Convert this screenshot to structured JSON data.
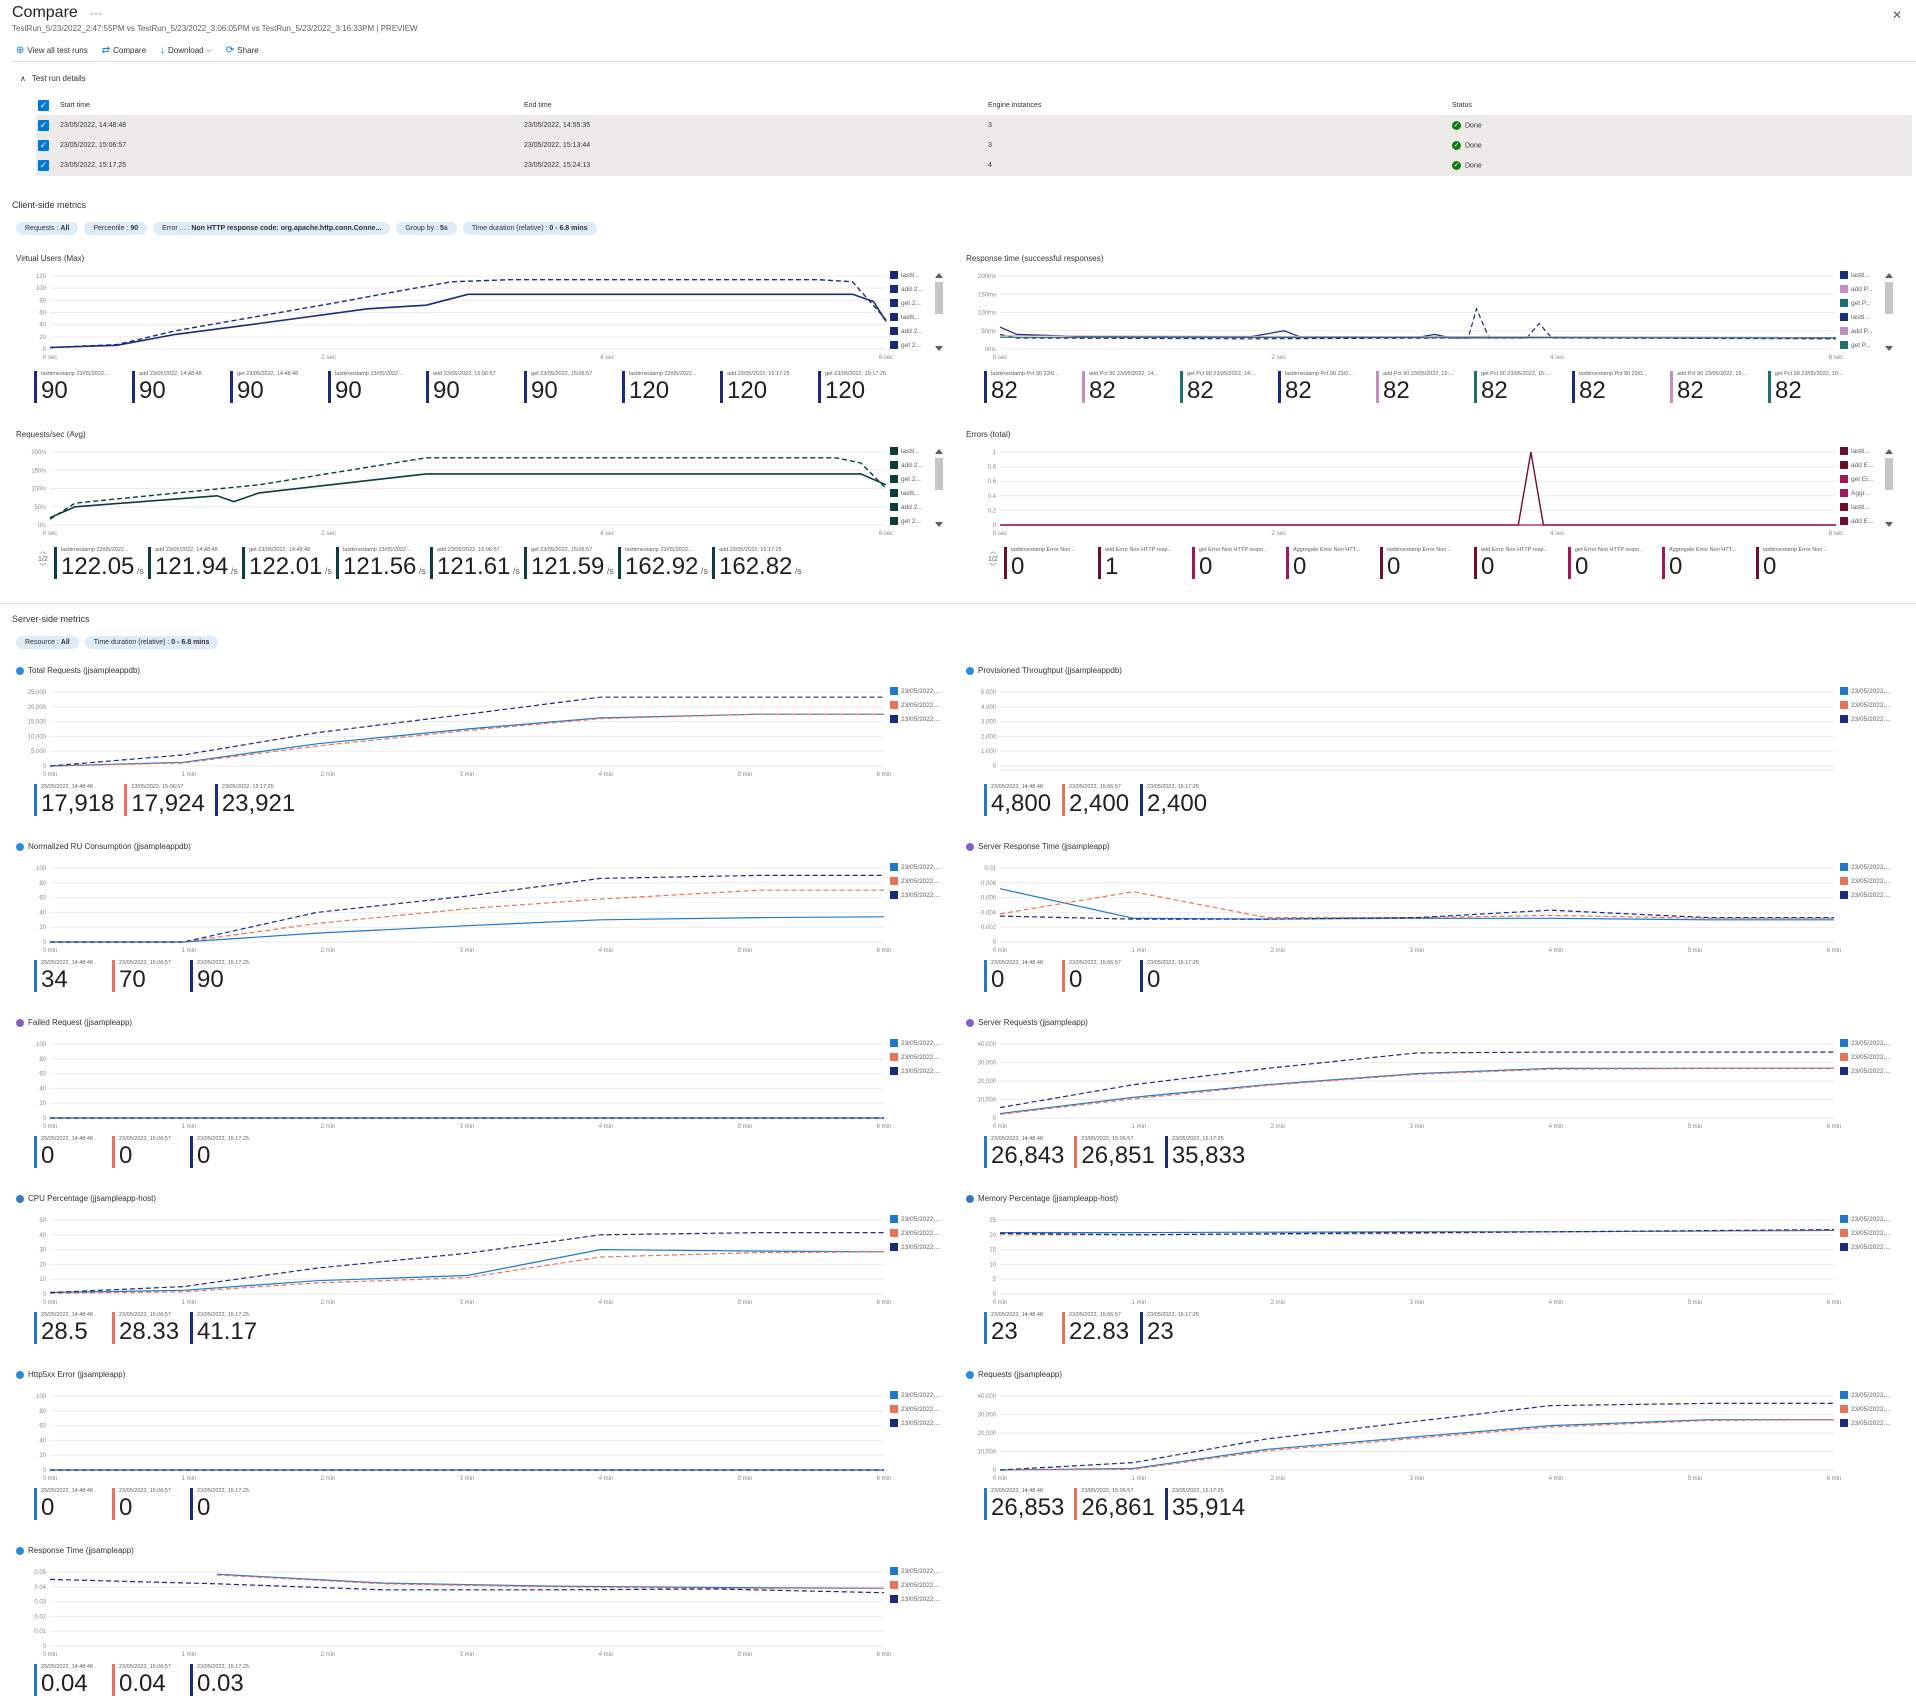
{
  "header": {
    "title": "Compare",
    "subtitle": "TestRun_5/23/2022_2:47:55PM vs TestRun_5/23/2022_3:06:05PM vs TestRun_5/23/2022_3:16:33PM | PREVIEW"
  },
  "toolbar": {
    "view_all": "View all test runs",
    "compare": "Compare",
    "download": "Download",
    "share": "Share"
  },
  "test_runs": {
    "title": "Test run details",
    "columns": [
      "Start time",
      "End time",
      "Engine instances",
      "Status"
    ],
    "rows": [
      {
        "start": "23/05/2022, 14:48:48",
        "end": "23/05/2022, 14:55:35",
        "engines": "3",
        "status": "Done"
      },
      {
        "start": "23/05/2022, 15:06:57",
        "end": "23/05/2022, 15:13:44",
        "engines": "3",
        "status": "Done"
      },
      {
        "start": "23/05/2022, 15:17:25",
        "end": "23/05/2022, 15:24:13",
        "engines": "4",
        "status": "Done"
      }
    ]
  },
  "client": {
    "title": "Client-side metrics",
    "filters": [
      {
        "key": "Requests : ",
        "value": "All"
      },
      {
        "key": "Percentile : ",
        "value": "90"
      },
      {
        "key": "Error ... : ",
        "value": "Non HTTP response code: org.apache.http.conn.Conne..."
      },
      {
        "key": "Group by : ",
        "value": "5s"
      },
      {
        "key": "Time duration (relative) : ",
        "value": "0 - 6.8 mins"
      }
    ]
  },
  "server": {
    "title": "Server-side metrics",
    "filters": [
      {
        "key": "Resource : ",
        "value": "All"
      },
      {
        "key": "Time duration (relative) : ",
        "value": "0 - 6.8 mins"
      }
    ]
  },
  "colors": {
    "blue": "#1f78c8",
    "orange": "#e8735a",
    "navy": "#1b2a7a"
  },
  "client_charts": [
    {
      "id": "vu",
      "title": "Virtual Users (Max)",
      "y_ticks": [
        "120",
        "100",
        "80",
        "60",
        "40",
        "20",
        "0"
      ],
      "x_ticks": [
        "0 sec",
        "2 sec",
        "4 sec",
        "6 sec"
      ],
      "legend": [
        "lastti...",
        "add 2...",
        "get 2...",
        "lastti...",
        "add 2...",
        "get 2..."
      ],
      "legend_colors": [
        "#1b2a7a",
        "#1b2a7a",
        "#1b2a7a",
        "#1b2a7a",
        "#1b2a7a",
        "#1b2a7a"
      ],
      "tiles": [
        {
          "label": "lasttimestamp 23/05/2022...",
          "value": "90",
          "unit": "",
          "color": "#1b2a7a"
        },
        {
          "label": "add 23/05/2022, 14:48:48",
          "value": "90",
          "unit": "",
          "color": "#1b2a7a"
        },
        {
          "label": "get 23/05/2022, 14:48:48",
          "value": "90",
          "unit": "",
          "color": "#1b2a7a"
        },
        {
          "label": "lasttimestamp 23/05/2022...",
          "value": "90",
          "unit": "",
          "color": "#1b2a7a"
        },
        {
          "label": "add 23/05/2022, 15:06:57",
          "value": "90",
          "unit": "",
          "color": "#1b2a7a"
        },
        {
          "label": "get 23/05/2022, 15:06:57",
          "value": "90",
          "unit": "",
          "color": "#1b2a7a"
        },
        {
          "label": "lasttimestamp 23/05/2022...",
          "value": "120",
          "unit": "",
          "color": "#1b2a7a"
        },
        {
          "label": "add 23/05/2022, 15:17:25",
          "value": "120",
          "unit": "",
          "color": "#1b2a7a"
        },
        {
          "label": "get 23/05/2022, 15:17:25",
          "value": "120",
          "unit": "",
          "color": "#1b2a7a"
        }
      ]
    },
    {
      "id": "rt",
      "title": "Response time (successful responses)",
      "y_ticks": [
        "200ms",
        "150ms",
        "100ms",
        "50ms",
        "0ms"
      ],
      "x_ticks": [
        "0 sec",
        "2 sec",
        "4 sec",
        "6 sec"
      ],
      "legend": [
        "lastti...",
        "add P...",
        "get P...",
        "lastti...",
        "add P...",
        "get P..."
      ],
      "legend_colors": [
        "#1b2a7a",
        "#c38fbf",
        "#1f6f6f",
        "#1b2a7a",
        "#c38fbf",
        "#1f6f6f"
      ],
      "tiles": [
        {
          "label": "lasttimestamp Pct 90 23/0...",
          "value": "82",
          "unit": "",
          "color": "#1b2a7a"
        },
        {
          "label": "add Pct 90 23/05/2022, 14...",
          "value": "82",
          "unit": "",
          "color": "#c38fbf"
        },
        {
          "label": "get Pct 90 23/05/2022, 14:...",
          "value": "82",
          "unit": "",
          "color": "#1f6f6f"
        },
        {
          "label": "lasttimestamp Pct 90 23/0...",
          "value": "82",
          "unit": "",
          "color": "#1b2a7a"
        },
        {
          "label": "add Pct 90 23/05/2022, 15:...",
          "value": "82",
          "unit": "",
          "color": "#c38fbf"
        },
        {
          "label": "get Pct 90 23/05/2022, 15:...",
          "value": "82",
          "unit": "",
          "color": "#1f6f6f"
        },
        {
          "label": "lasttimestamp Pct 90 23/0...",
          "value": "82",
          "unit": "",
          "color": "#1b2a7a"
        },
        {
          "label": "add Pct 90 23/05/2022, 15:...",
          "value": "82",
          "unit": "",
          "color": "#c38fbf"
        },
        {
          "label": "get Pct 90 23/05/2022, 15:...",
          "value": "82",
          "unit": "",
          "color": "#1f6f6f"
        }
      ]
    },
    {
      "id": "rps",
      "title": "Requests/sec (Avg)",
      "y_ticks": [
        "200/s",
        "150/s",
        "100/s",
        "50/s",
        "0/s"
      ],
      "x_ticks": [
        "0 sec",
        "2 sec",
        "4 sec",
        "6 sec"
      ],
      "legend": [
        "lastti...",
        "add 2...",
        "get 2...",
        "lastti...",
        "add 2...",
        "get 2..."
      ],
      "legend_colors": [
        "#0e3b3b",
        "#0e3b3b",
        "#0e3b3b",
        "#0e3b3b",
        "#0e3b3b",
        "#0e3b3b"
      ],
      "pager": "1/2",
      "tiles": [
        {
          "label": "lasttimestamp 23/05/2022...",
          "value": "122.05",
          "unit": "/s",
          "color": "#0e3b3b"
        },
        {
          "label": "add 23/05/2022, 14:48:48",
          "value": "121.94",
          "unit": "/s",
          "color": "#0e3b3b"
        },
        {
          "label": "get 23/05/2022, 14:48:48",
          "value": "122.01",
          "unit": "/s",
          "color": "#0e3b3b"
        },
        {
          "label": "lasttimestamp 23/05/2022...",
          "value": "121.56",
          "unit": "/s",
          "color": "#0e3b3b"
        },
        {
          "label": "add 23/05/2022, 15:06:57",
          "value": "121.61",
          "unit": "/s",
          "color": "#0e3b3b"
        },
        {
          "label": "get 23/05/2022, 15:06:57",
          "value": "121.59",
          "unit": "/s",
          "color": "#0e3b3b"
        },
        {
          "label": "lasttimestamp 23/05/2022...",
          "value": "162.92",
          "unit": "/s",
          "color": "#0e3b3b"
        },
        {
          "label": "add 23/05/2022, 15:17:25",
          "value": "162.82",
          "unit": "/s",
          "color": "#0e3b3b"
        }
      ]
    },
    {
      "id": "err",
      "title": "Errors (total)",
      "y_ticks": [
        "1",
        "0.8",
        "0.6",
        "0.4",
        "0.2",
        "0"
      ],
      "x_ticks": [
        "0 sec",
        "2 sec",
        "4 sec",
        "6 sec"
      ],
      "legend": [
        "lastti...",
        "add E...",
        "get Er...",
        "Aggr...",
        "lastti...",
        "add E..."
      ],
      "legend_colors": [
        "#6b0f2a",
        "#6b0f2a",
        "#a3175a",
        "#a3175a",
        "#6b0f2a",
        "#6b0f2a"
      ],
      "pager": "1/2",
      "tiles": [
        {
          "label": "lasttimestamp Error Non ...",
          "value": "0",
          "unit": "",
          "color": "#6b0f2a"
        },
        {
          "label": "add Error Non HTTP resp...",
          "value": "1",
          "unit": "",
          "color": "#6b0f2a"
        },
        {
          "label": "get Error Non HTTP respo...",
          "value": "0",
          "unit": "",
          "color": "#a3175a"
        },
        {
          "label": "Aggregate Error Non HTT...",
          "value": "0",
          "unit": "",
          "color": "#a3175a"
        },
        {
          "label": "lasttimestamp Error Non ...",
          "value": "0",
          "unit": "",
          "color": "#6b0f2a"
        },
        {
          "label": "add Error Non HTTP resp...",
          "value": "0",
          "unit": "",
          "color": "#6b0f2a"
        },
        {
          "label": "get Error Non HTTP respo...",
          "value": "0",
          "unit": "",
          "color": "#a3175a"
        },
        {
          "label": "Aggregate Error Non HTT...",
          "value": "0",
          "unit": "",
          "color": "#a3175a"
        },
        {
          "label": "lasttimestamp Error Non ...",
          "value": "0",
          "unit": "",
          "color": "#6b0f2a"
        }
      ]
    }
  ],
  "server_legend": [
    "23/05/2022,...",
    "23/05/2022,...",
    "23/05/2022,..."
  ],
  "server_tile_labels": [
    "23/05/2022, 14:48:48",
    "23/05/2022, 15:06:57",
    "23/05/2022, 15:17:25"
  ],
  "server_charts": [
    {
      "id": "tr",
      "title": "Total Requests (jjsampleappdb)",
      "icon": "cosmos-db-icon",
      "y_ticks": [
        "25,000",
        "20,000",
        "15,000",
        "10,000",
        "5,000",
        "0"
      ],
      "x_ticks": [
        "0 min",
        "1 min",
        "2 min",
        "3 min",
        "4 min",
        "5 min",
        "6 min"
      ],
      "values": [
        "17,918",
        "17,924",
        "23,921"
      ]
    },
    {
      "id": "pt",
      "title": "Provisioned Throughput (jjsampleappdb)",
      "icon": "cosmos-db-icon",
      "y_ticks": [
        "5,000",
        "4,000",
        "3,000",
        "2,000",
        "1,000",
        "0"
      ],
      "x_ticks": [],
      "values": [
        "4,800",
        "2,400",
        "2,400"
      ]
    },
    {
      "id": "nru",
      "title": "Normalized RU Consumption (jjsampleappdb)",
      "icon": "cosmos-db-icon",
      "y_ticks": [
        "100",
        "80",
        "60",
        "40",
        "20",
        "0"
      ],
      "x_ticks": [
        "0 min",
        "1 min",
        "2 min",
        "3 min",
        "4 min",
        "5 min",
        "6 min"
      ],
      "values": [
        "34",
        "70",
        "90"
      ]
    },
    {
      "id": "srt",
      "title": "Server Response Time (jjsampleapp)",
      "icon": "app-insights-icon",
      "y_ticks": [
        "0.01",
        "0.008",
        "0.006",
        "0.004",
        "0.002",
        "0"
      ],
      "x_ticks": [
        "0 min",
        "1 min",
        "2 min",
        "3 min",
        "4 min",
        "5 min",
        "6 min"
      ],
      "values": [
        "0",
        "0",
        "0"
      ]
    },
    {
      "id": "fr",
      "title": "Failed Request (jjsampleapp)",
      "icon": "app-insights-icon",
      "y_ticks": [
        "100",
        "80",
        "60",
        "40",
        "20",
        "0"
      ],
      "x_ticks": [
        "0 min",
        "1 min",
        "2 min",
        "3 min",
        "4 min",
        "5 min",
        "6 min"
      ],
      "values": [
        "0",
        "0",
        "0"
      ]
    },
    {
      "id": "sr",
      "title": "Server Requests (jjsampleapp)",
      "icon": "app-insights-icon",
      "y_ticks": [
        "40,000",
        "30,000",
        "20,000",
        "10,000",
        "0"
      ],
      "x_ticks": [
        "0 min",
        "1 min",
        "2 min",
        "3 min",
        "4 min",
        "5 min",
        "6 min"
      ],
      "values": [
        "26,843",
        "26,851",
        "35,833"
      ]
    },
    {
      "id": "cpu",
      "title": "CPU Percentage (jjsampleapp-host)",
      "icon": "app-service-plan-icon",
      "y_ticks": [
        "50",
        "40",
        "30",
        "20",
        "10",
        "0"
      ],
      "x_ticks": [
        "0 min",
        "1 min",
        "2 min",
        "3 min",
        "4 min",
        "5 min",
        "6 min"
      ],
      "values": [
        "28.5",
        "28.33",
        "41.17"
      ]
    },
    {
      "id": "mem",
      "title": "Memory Percentage (jjsampleapp-host)",
      "icon": "app-service-plan-icon",
      "y_ticks": [
        "25",
        "20",
        "15",
        "10",
        "5",
        "0"
      ],
      "x_ticks": [
        "0 min",
        "1 min",
        "2 min",
        "3 min",
        "4 min",
        "5 min",
        "6 min"
      ],
      "values": [
        "23",
        "22.83",
        "23"
      ]
    },
    {
      "id": "h5",
      "title": "Http5xx Error (jjsampleapp)",
      "icon": "app-service-icon",
      "y_ticks": [
        "100",
        "80",
        "60",
        "40",
        "20",
        "0"
      ],
      "x_ticks": [
        "0 min",
        "1 min",
        "2 min",
        "3 min",
        "4 min",
        "5 min",
        "6 min"
      ],
      "values": [
        "0",
        "0",
        "0"
      ]
    },
    {
      "id": "req",
      "title": "Requests (jjsampleapp)",
      "icon": "app-service-icon",
      "y_ticks": [
        "40,000",
        "30,000",
        "20,000",
        "10,000",
        "0"
      ],
      "x_ticks": [
        "0 min",
        "1 min",
        "2 min",
        "3 min",
        "4 min",
        "5 min",
        "6 min"
      ],
      "values": [
        "26,853",
        "26,861",
        "35,914"
      ]
    },
    {
      "id": "rti",
      "title": "Response Time (jjsampleapp)",
      "icon": "app-service-icon",
      "y_ticks": [
        "0.05",
        "0.04",
        "0.03",
        "0.02",
        "0.01",
        "0"
      ],
      "x_ticks": [
        "0 min",
        "1 min",
        "2 min",
        "3 min",
        "4 min",
        "5 min",
        "6 min"
      ],
      "values": [
        "0.04",
        "0.04",
        "0.03"
      ]
    }
  ]
}
